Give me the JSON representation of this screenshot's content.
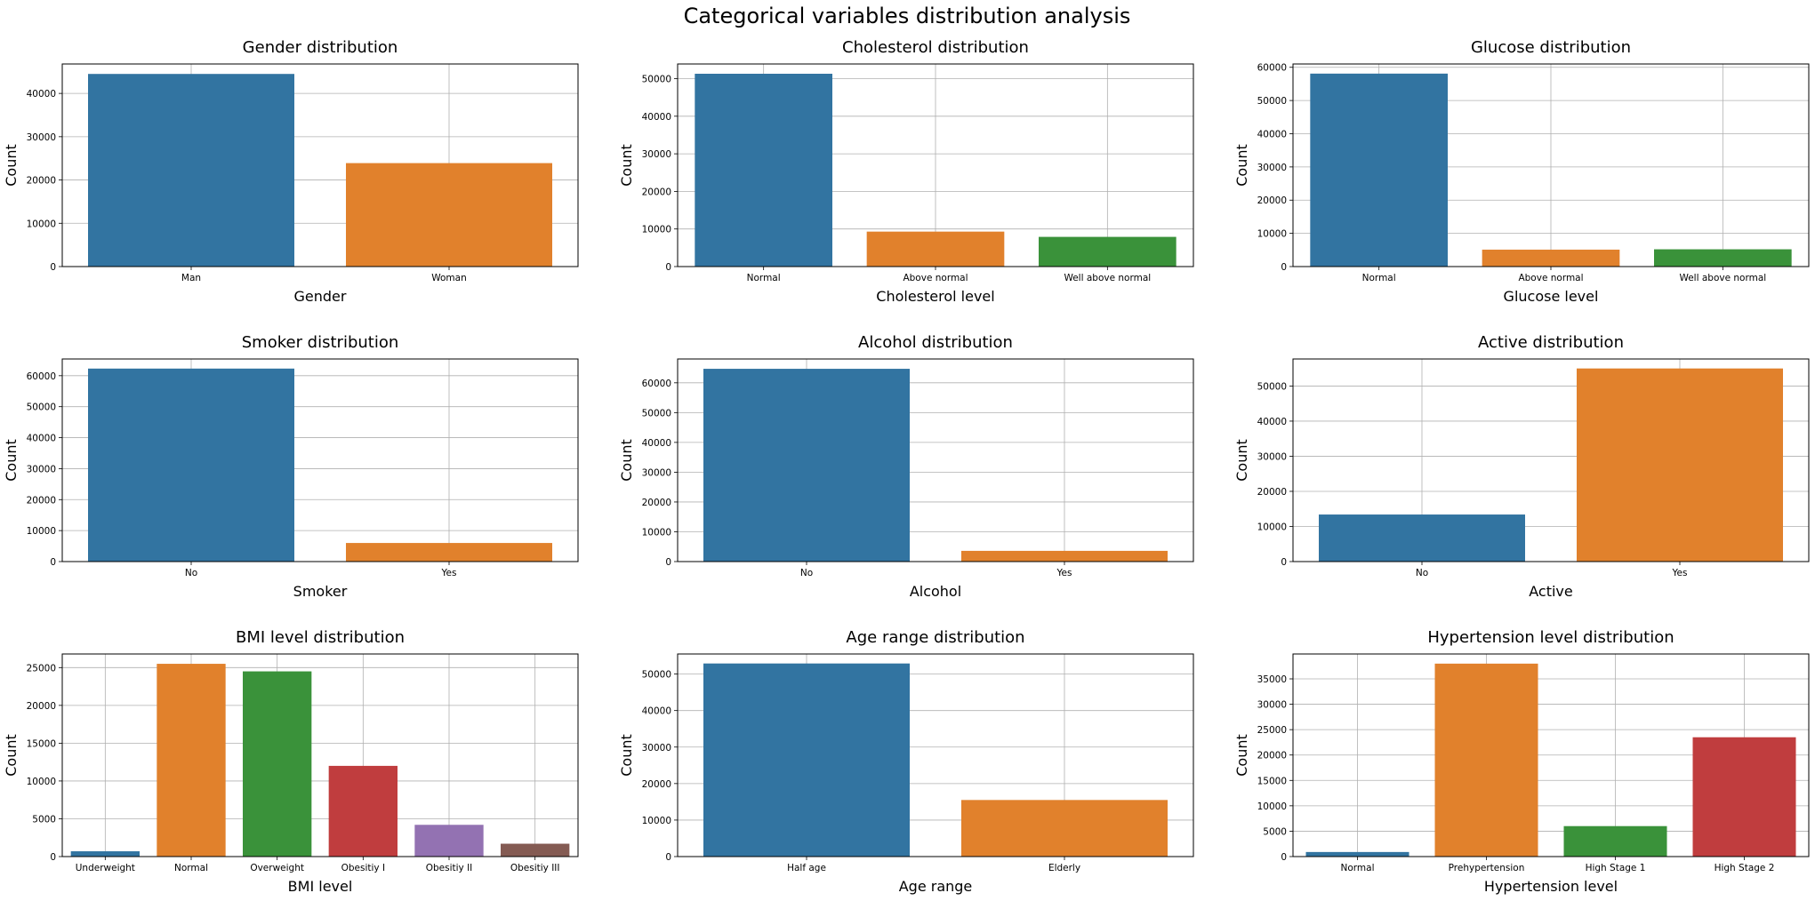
{
  "figure": {
    "title": "Categorical variables distribution analysis"
  },
  "palette": [
    "#3274a1",
    "#e1812c",
    "#3a923a",
    "#c03d3e",
    "#9372b2",
    "#845b53"
  ],
  "chart_data": [
    {
      "type": "bar",
      "title": "Gender distribution",
      "xlabel": "Gender",
      "ylabel": "Count",
      "categories": [
        "Man",
        "Woman"
      ],
      "values": [
        44500,
        23900
      ],
      "ylim": [
        0,
        46800
      ],
      "yticks": [
        0,
        10000,
        20000,
        30000,
        40000
      ],
      "grid": true
    },
    {
      "type": "bar",
      "title": "Cholesterol distribution",
      "xlabel": "Cholesterol level",
      "ylabel": "Count",
      "categories": [
        "Normal",
        "Above normal",
        "Well above normal"
      ],
      "values": [
        51300,
        9300,
        7900
      ],
      "ylim": [
        0,
        53900
      ],
      "yticks": [
        0,
        10000,
        20000,
        30000,
        40000,
        50000
      ],
      "grid": true
    },
    {
      "type": "bar",
      "title": "Glucose distribution",
      "xlabel": "Glucose level",
      "ylabel": "Count",
      "categories": [
        "Normal",
        "Above normal",
        "Well above normal"
      ],
      "values": [
        58100,
        5100,
        5200
      ],
      "ylim": [
        0,
        61000
      ],
      "yticks": [
        0,
        10000,
        20000,
        30000,
        40000,
        50000,
        60000
      ],
      "grid": true
    },
    {
      "type": "bar",
      "title": "Smoker distribution",
      "xlabel": "Smoker",
      "ylabel": "Count",
      "categories": [
        "No",
        "Yes"
      ],
      "values": [
        62300,
        6000
      ],
      "ylim": [
        0,
        65400
      ],
      "yticks": [
        0,
        10000,
        20000,
        30000,
        40000,
        50000,
        60000
      ],
      "grid": true
    },
    {
      "type": "bar",
      "title": "Alcohol distribution",
      "xlabel": "Alcohol",
      "ylabel": "Count",
      "categories": [
        "No",
        "Yes"
      ],
      "values": [
        64700,
        3600
      ],
      "ylim": [
        0,
        68000
      ],
      "yticks": [
        0,
        10000,
        20000,
        30000,
        40000,
        50000,
        60000
      ],
      "grid": true
    },
    {
      "type": "bar",
      "title": "Active distribution",
      "xlabel": "Active",
      "ylabel": "Count",
      "categories": [
        "No",
        "Yes"
      ],
      "values": [
        13400,
        55000
      ],
      "ylim": [
        0,
        57700
      ],
      "yticks": [
        0,
        10000,
        20000,
        30000,
        40000,
        50000
      ],
      "grid": true
    },
    {
      "type": "bar",
      "title": "BMI level distribution",
      "xlabel": "BMI level",
      "ylabel": "Count",
      "categories": [
        "Underweight",
        "Normal",
        "Overweight",
        "Obesitiy I",
        "Obesitiy II",
        "Obesitiy III"
      ],
      "values": [
        700,
        25500,
        24500,
        12000,
        4200,
        1700
      ],
      "ylim": [
        0,
        26800
      ],
      "yticks": [
        0,
        5000,
        10000,
        15000,
        20000,
        25000
      ],
      "grid": true
    },
    {
      "type": "bar",
      "title": "Age range distribution",
      "xlabel": "Age range",
      "ylabel": "Count",
      "categories": [
        "Half age",
        "Elderly"
      ],
      "values": [
        52900,
        15500
      ],
      "ylim": [
        0,
        55500
      ],
      "yticks": [
        0,
        10000,
        20000,
        30000,
        40000,
        50000
      ],
      "grid": true
    },
    {
      "type": "bar",
      "title": "Hypertension level distribution",
      "xlabel": "Hypertension level",
      "ylabel": "Count",
      "categories": [
        "Normal",
        "Prehypertension",
        "High Stage 1",
        "High Stage 2"
      ],
      "values": [
        900,
        38000,
        6000,
        23500
      ],
      "ylim": [
        0,
        39900
      ],
      "yticks": [
        0,
        5000,
        10000,
        15000,
        20000,
        25000,
        30000,
        35000
      ],
      "grid": true
    }
  ]
}
